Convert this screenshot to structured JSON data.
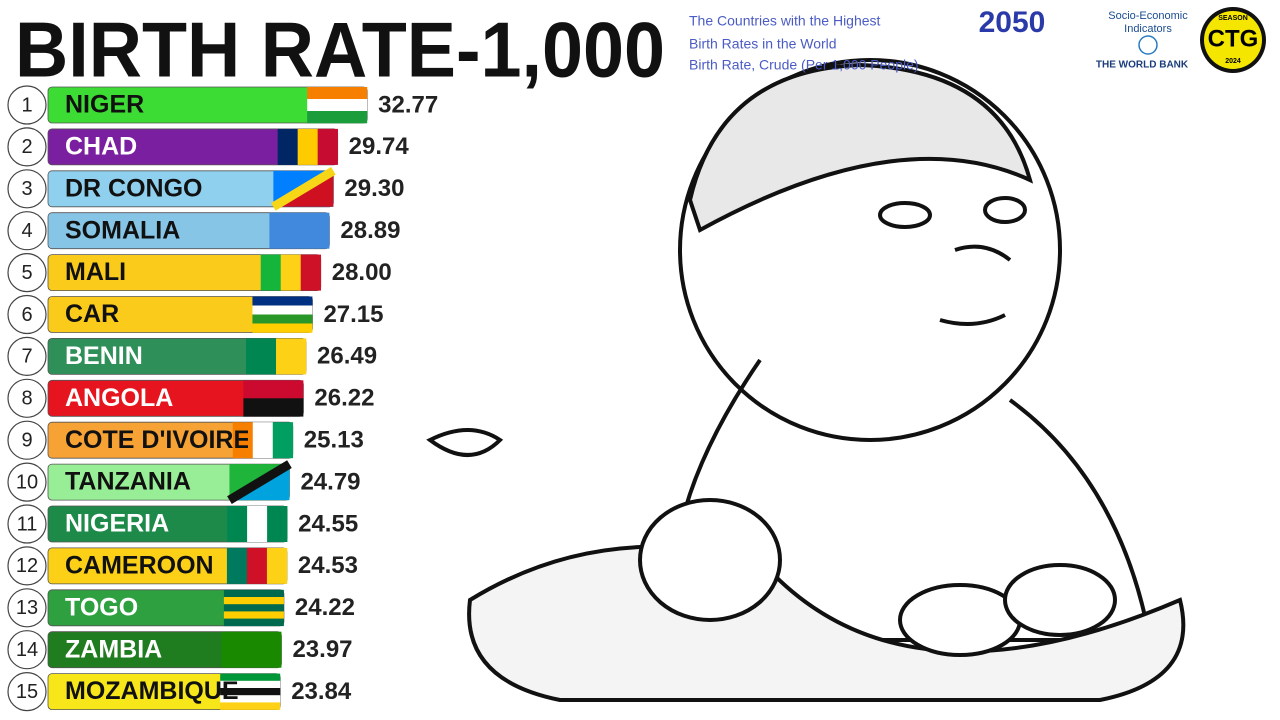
{
  "chart_data": {
    "type": "bar",
    "orientation": "horizontal",
    "title": "BIRTH RATE-1,000",
    "subtitle": [
      "The Countries with the Highest",
      "Birth Rates in the World",
      "Birth Rate, Crude (Per 1,000 People)"
    ],
    "period": "2050",
    "source": [
      "Socio-Economic",
      "Indicators",
      "THE WORLD BANK"
    ],
    "badge": [
      "SEASON",
      "CTG",
      "2024"
    ],
    "ranks": [
      "1",
      "2",
      "3",
      "4",
      "5",
      "6",
      "7",
      "8",
      "9",
      "10",
      "11",
      "12",
      "13",
      "14",
      "15"
    ],
    "categories": [
      "NIGER",
      "CHAD",
      "DR CONGO",
      "SOMALIA",
      "MALI",
      "CAR",
      "BENIN",
      "ANGOLA",
      "COTE D'IVOIRE",
      "TANZANIA",
      "NIGERIA",
      "CAMEROON",
      "TOGO",
      "ZAMBIA",
      "MOZAMBIQUE"
    ],
    "values": [
      32.77,
      29.74,
      29.3,
      28.89,
      28.0,
      27.15,
      26.49,
      26.22,
      25.13,
      24.79,
      24.55,
      24.53,
      24.22,
      23.97,
      23.84
    ],
    "value_labels": [
      "32.77",
      "29.74",
      "29.30",
      "28.89",
      "28.00",
      "27.15",
      "26.49",
      "26.22",
      "25.13",
      "24.79",
      "24.55",
      "24.53",
      "24.22",
      "23.97",
      "23.84"
    ],
    "colors": [
      "#3ddc34",
      "#7a1fa0",
      "#8fd0ee",
      "#86c5e6",
      "#fbcb1c",
      "#fbcb1c",
      "#2f8f58",
      "#e6141e",
      "#f7a235",
      "#98ee96",
      "#1e8a4a",
      "#fbd016",
      "#2ea040",
      "#1f7d1f",
      "#f6e61a"
    ]
  }
}
